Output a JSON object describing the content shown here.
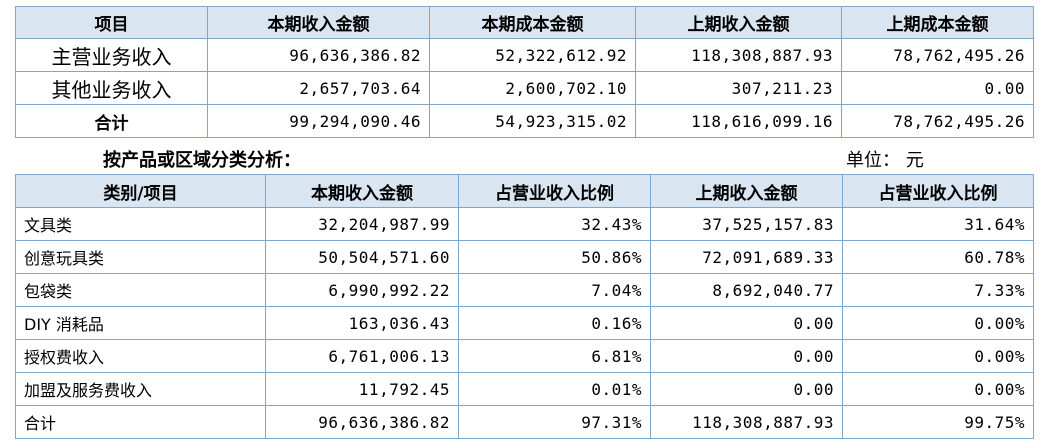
{
  "table1": {
    "headers": [
      "项目",
      "本期收入金额",
      "本期成本金额",
      "上期收入金额",
      "上期成本金额"
    ],
    "rows": [
      {
        "label": "主营业务收入",
        "values": [
          "96,636,386.82",
          "52,322,612.92",
          "118,308,887.93",
          "78,762,495.26"
        ]
      },
      {
        "label": "其他业务收入",
        "values": [
          "2,657,703.64",
          "2,600,702.10",
          "307,211.23",
          "0.00"
        ]
      },
      {
        "label": "合计",
        "values": [
          "99,294,090.46",
          "54,923,315.02",
          "118,616,099.16",
          "78,762,495.26"
        ]
      }
    ]
  },
  "section": {
    "title": "按产品或区域分类分析：",
    "unit": "单位：  元"
  },
  "table2": {
    "headers": [
      "类别/项目",
      "本期收入金额",
      "占营业收入比例",
      "上期收入金额",
      "占营业收入比例"
    ],
    "rows": [
      {
        "label": "文具类",
        "values": [
          "32,204,987.99",
          "32.43%",
          "37,525,157.83",
          "31.64%"
        ]
      },
      {
        "label": "创意玩具类",
        "values": [
          "50,504,571.60",
          "50.86%",
          "72,091,689.33",
          "60.78%"
        ]
      },
      {
        "label": "包袋类",
        "values": [
          "6,990,992.22",
          "7.04%",
          "8,692,040.77",
          "7.33%"
        ]
      },
      {
        "label": "DIY 消耗品",
        "values": [
          "163,036.43",
          "0.16%",
          "0.00",
          "0.00%"
        ]
      },
      {
        "label": "授权费收入",
        "values": [
          "6,761,006.13",
          "6.81%",
          "0.00",
          "0.00%"
        ]
      },
      {
        "label": "加盟及服务费收入",
        "values": [
          "11,792.45",
          "0.01%",
          "0.00",
          "0.00%"
        ]
      },
      {
        "label": "合计",
        "values": [
          "96,636,386.82",
          "97.31%",
          "118,308,887.93",
          "99.75%"
        ]
      }
    ]
  }
}
